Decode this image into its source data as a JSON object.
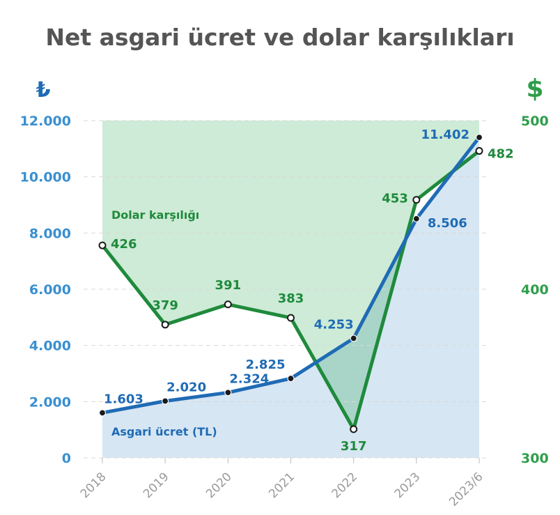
{
  "chart_data": {
    "type": "line",
    "title": "Net asgari ücret ve dolar karşılıkları",
    "left_axis_symbol": "₺",
    "right_axis_symbol": "$",
    "categories": [
      "2018",
      "2019",
      "2020",
      "2021",
      "2022",
      "2023",
      "2023/6"
    ],
    "left_axis": {
      "ylim": [
        0,
        12000
      ],
      "ticks": [
        "0",
        "2.000",
        "4.000",
        "6.000",
        "8.000",
        "10.000",
        "12.000"
      ],
      "tick_values": [
        0,
        2000,
        4000,
        6000,
        8000,
        10000,
        12000
      ]
    },
    "right_axis": {
      "ylim": [
        300,
        500
      ],
      "ticks": [
        "300",
        "400",
        "500"
      ],
      "tick_values": [
        300,
        400,
        500
      ]
    },
    "series": [
      {
        "name": "Asgari ücret (TL)",
        "axis": "left",
        "values": [
          1603,
          2020,
          2324,
          2825,
          4253,
          8506,
          11402
        ],
        "labels": [
          "1.603",
          "2.020",
          "2.324",
          "2.825",
          "4.253",
          "8.506",
          "11.402"
        ]
      },
      {
        "name": "Dolar karşılığı",
        "axis": "right",
        "values": [
          426,
          379,
          391,
          383,
          317,
          453,
          482
        ],
        "labels": [
          "426",
          "379",
          "391",
          "383",
          "317",
          "453",
          "482"
        ]
      }
    ],
    "colors": {
      "tl_line": "#1f6bb5",
      "usd_line": "#1f8a3c",
      "tl_fill": "#d6e6f2",
      "usd_fill": "#cdebd6",
      "overlap_fill": "#a9d5c9",
      "left_tick": "#3a8fd0",
      "right_tick": "#2e9e4a",
      "title": "#555555"
    },
    "grid": true,
    "legend": "inline-labels"
  }
}
